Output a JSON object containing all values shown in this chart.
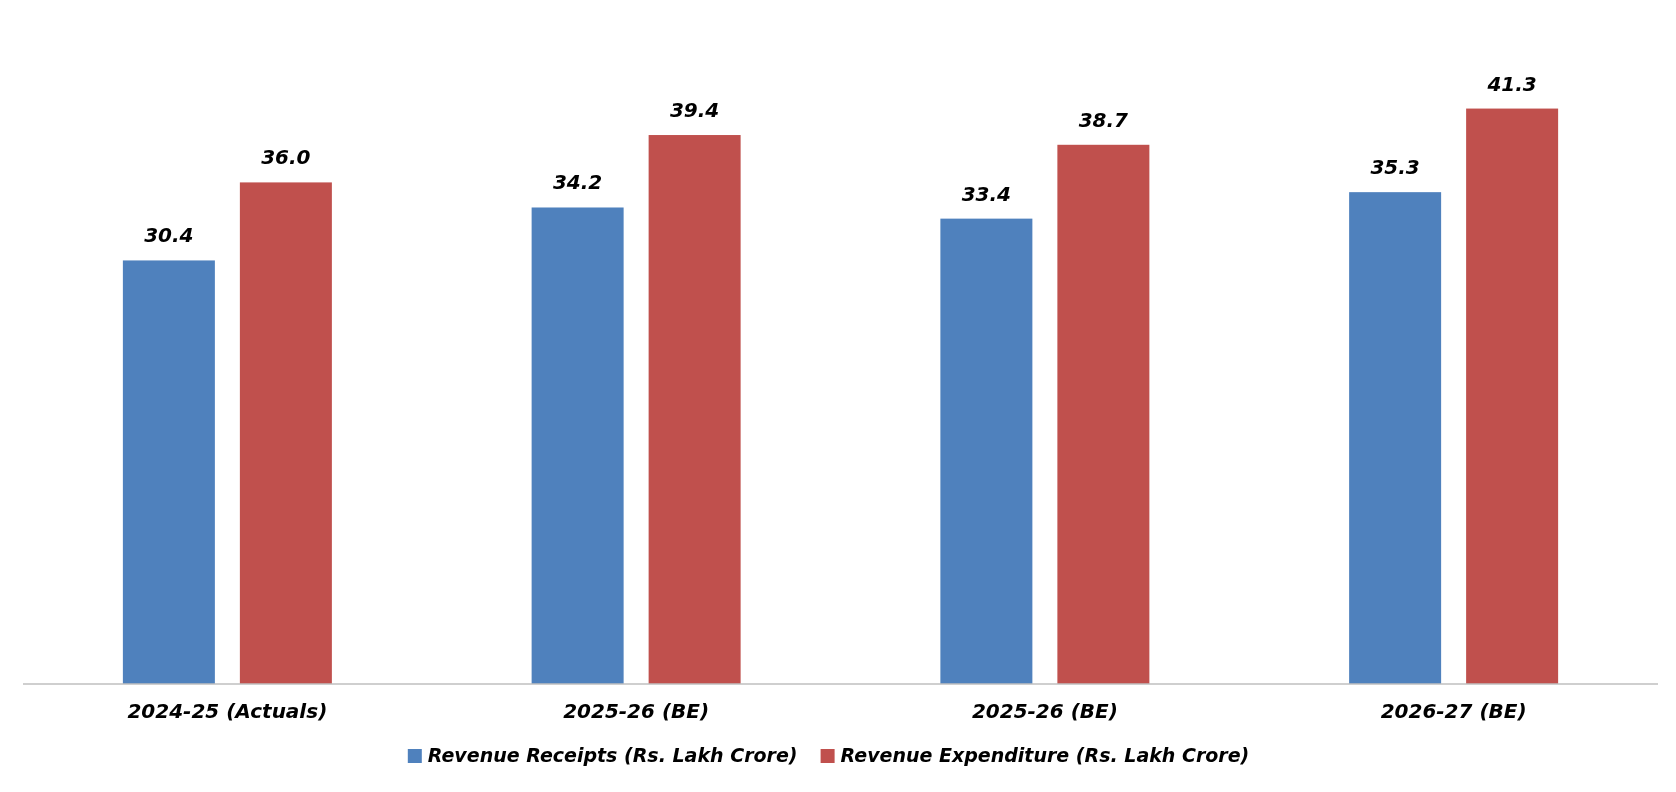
{
  "chart_data": {
    "type": "bar",
    "categories": [
      "2024-25 (Actuals)",
      "2025-26 (BE)",
      "2025-26 (BE)",
      "2026-27 (BE)"
    ],
    "series": [
      {
        "name": "Revenue Receipts (Rs. Lakh Crore)",
        "color": "#4f81bd",
        "values": [
          30.4,
          34.2,
          33.4,
          35.3
        ],
        "value_labels": [
          "30.4",
          "34.2",
          "33.4",
          "35.3"
        ]
      },
      {
        "name": "Revenue Expenditure (Rs. Lakh Crore)",
        "color": "#c0504d",
        "values": [
          36.0,
          39.4,
          38.7,
          41.3
        ],
        "value_labels": [
          "36.0",
          "39.4",
          "38.7",
          "41.3"
        ]
      }
    ],
    "legend": "bottom"
  }
}
